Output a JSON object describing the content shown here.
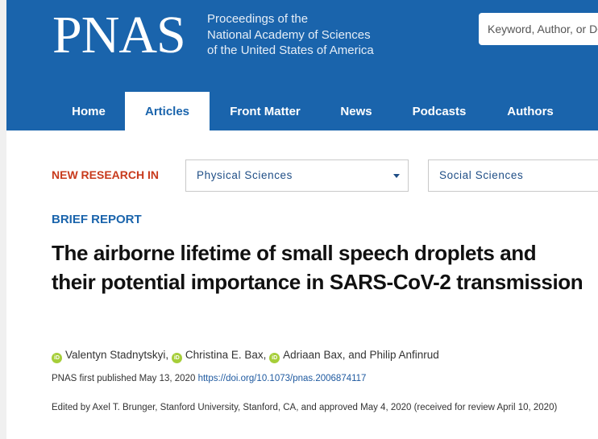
{
  "header": {
    "logo": "PNAS",
    "journal_lines": [
      "Proceedings of the",
      "National Academy of Sciences",
      "of the United States of America"
    ],
    "search_placeholder": "Keyword, Author, or DOI"
  },
  "nav": {
    "items": [
      {
        "label": "Home",
        "active": false
      },
      {
        "label": "Articles",
        "active": true
      },
      {
        "label": "Front Matter",
        "active": false
      },
      {
        "label": "News",
        "active": false
      },
      {
        "label": "Podcasts",
        "active": false
      },
      {
        "label": "Authors",
        "active": false
      }
    ]
  },
  "research": {
    "label": "NEW RESEARCH IN",
    "select1": "Physical Sciences",
    "select2": "Social Sciences"
  },
  "article": {
    "type": "BRIEF REPORT",
    "title": "The airborne lifetime of small speech droplets and their potential importance in SARS-CoV-2 transmission",
    "authors": [
      "Valentyn Stadnytskyi",
      "Christina E. Bax",
      "Adriaan Bax",
      "Philip Anfinrud"
    ],
    "orcid_label": "iD",
    "pub_text": "PNAS first published May 13, 2020",
    "doi": "https://doi.org/10.1073/pnas.2006874117",
    "edited": "Edited by Axel T. Brunger, Stanford University, Stanford, CA, and approved May 4, 2020 (received for review April 10, 2020)"
  },
  "colors": {
    "header_bg": "#1a64ac",
    "accent_red": "#c83a1c",
    "orcid_green": "#a6ce39"
  }
}
